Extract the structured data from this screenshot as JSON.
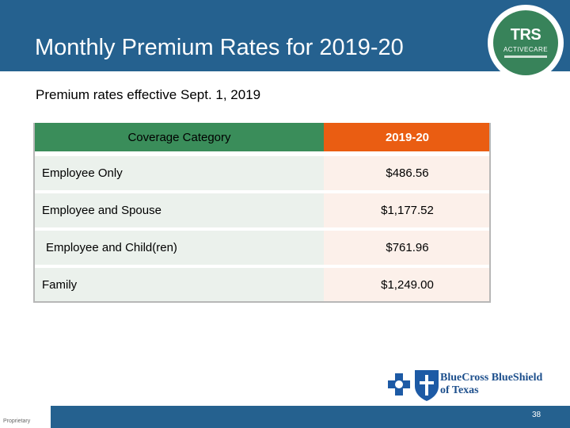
{
  "header": {
    "title": "Monthly Premium Rates for 2019-20",
    "logo": {
      "text": "TRS",
      "subtext": "ACTIVECARE"
    }
  },
  "subtitle": "Premium rates effective Sept. 1, 2019",
  "table": {
    "columns": [
      "Coverage Category",
      "2019-20"
    ],
    "rows": [
      {
        "category": "Employee Only",
        "rate": "$486.56"
      },
      {
        "category": "Employee and Spouse",
        "rate": "$1,177.52"
      },
      {
        "category": "Employee and Child(ren)",
        "rate": "$761.96"
      },
      {
        "category": "Family",
        "rate": "$1,249.00"
      }
    ]
  },
  "footer": {
    "sponsor_line1": "BlueCross BlueShield",
    "sponsor_line2": "of Texas",
    "proprietary": "Proprietary",
    "page_number": "38"
  },
  "colors": {
    "header_bg": "#25618f",
    "category_header": "#3a8d5a",
    "year_header": "#ea5d12"
  }
}
